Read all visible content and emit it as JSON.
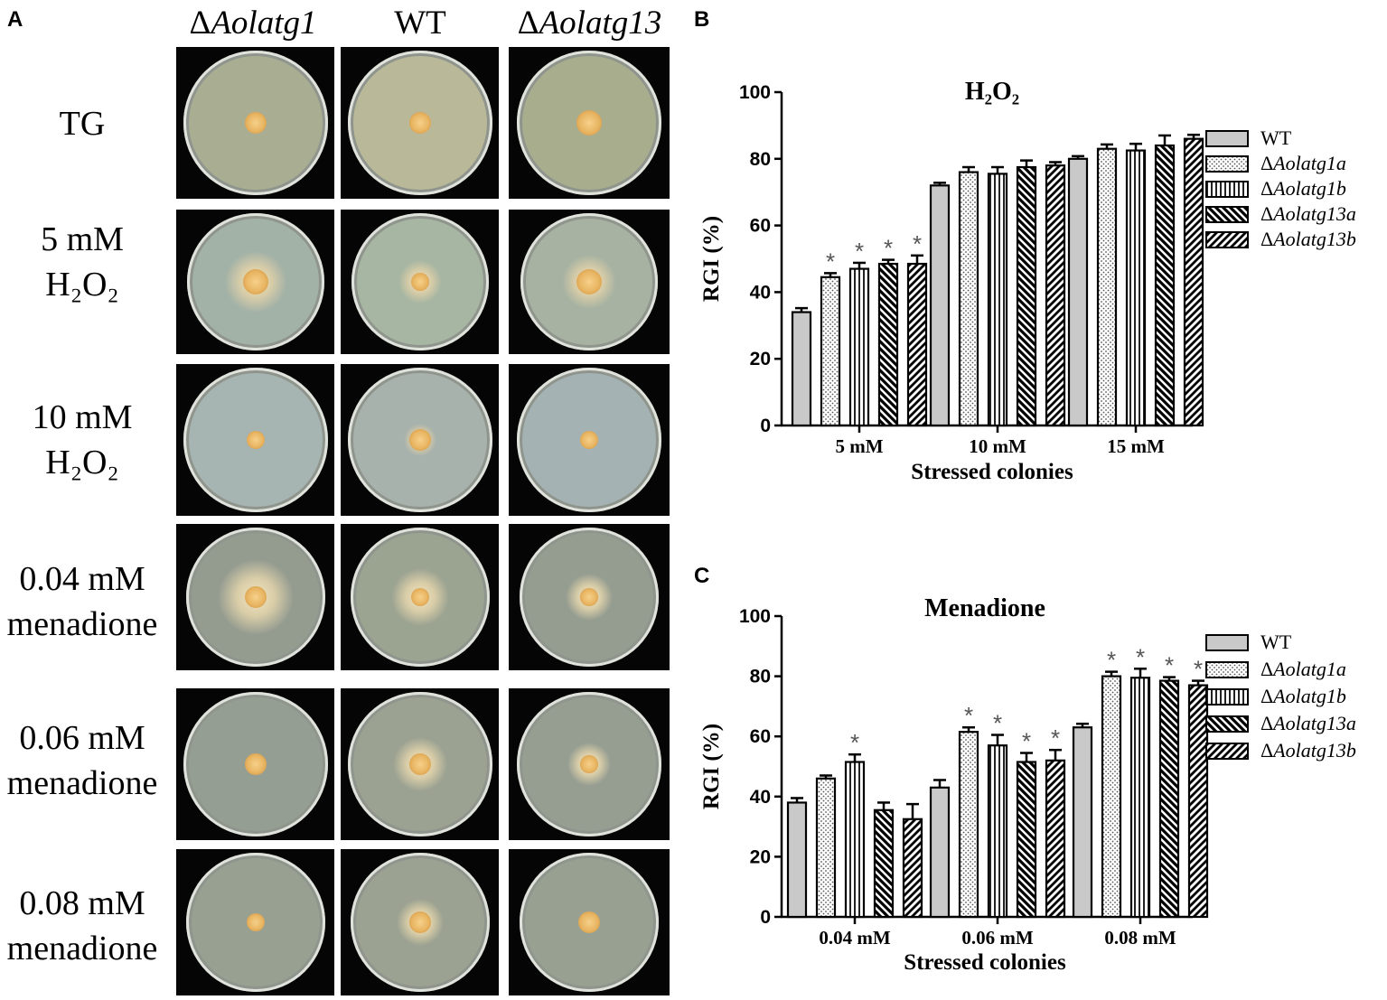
{
  "panels": {
    "a": "A",
    "b": "B",
    "c": "C"
  },
  "plates": {
    "column_headers": [
      {
        "prefix": "Δ",
        "name": "Aolatg1"
      },
      {
        "prefix": "",
        "name": "WT"
      },
      {
        "prefix": "Δ",
        "name": "Aolatg13"
      }
    ],
    "rows": [
      {
        "line1": "TG",
        "line2": ""
      },
      {
        "line1": "5 mM",
        "line2": "H₂O₂"
      },
      {
        "line1": "10 mM",
        "line2": "H₂O₂"
      },
      {
        "line1": "0.04 mM",
        "line2": "menadione"
      },
      {
        "line1": "0.06 mM",
        "line2": "menadione"
      },
      {
        "line1": "0.08 mM",
        "line2": "menadione"
      }
    ]
  },
  "chart_data": [
    {
      "type": "bar",
      "title": "H₂O₂",
      "xlabel": "Stressed colonies",
      "ylabel": "RGI (%)",
      "ylim": [
        0,
        100
      ],
      "yticks": [
        "0",
        "20",
        "40",
        "60",
        "80",
        "100"
      ],
      "categories": [
        "5 mM",
        "10 mM",
        "15 mM"
      ],
      "legend": "right",
      "series": [
        {
          "name": "WT",
          "values": [
            34,
            72,
            80
          ],
          "errors": [
            1.2,
            0.8,
            0.8
          ],
          "sig": [
            false,
            false,
            false
          ]
        },
        {
          "name": "ΔAolatg1a",
          "values": [
            44.5,
            76,
            83
          ],
          "errors": [
            1.2,
            1.5,
            1.3
          ],
          "sig": [
            true,
            false,
            false
          ]
        },
        {
          "name": "ΔAolatg1b",
          "values": [
            47,
            75.5,
            82.5
          ],
          "errors": [
            1.8,
            2,
            2
          ],
          "sig": [
            true,
            false,
            false
          ]
        },
        {
          "name": "ΔAolatg13a",
          "values": [
            48.5,
            77.5,
            84
          ],
          "errors": [
            1.2,
            2,
            3
          ],
          "sig": [
            true,
            false,
            false
          ]
        },
        {
          "name": "ΔAolatg13b",
          "values": [
            48.5,
            78,
            86
          ],
          "errors": [
            2.5,
            1,
            1.2
          ],
          "sig": [
            true,
            false,
            false
          ]
        }
      ]
    },
    {
      "type": "bar",
      "title": "Menadione",
      "xlabel": "Stressed colonies",
      "ylabel": "RGI (%)",
      "ylim": [
        0,
        100
      ],
      "yticks": [
        "0",
        "20",
        "40",
        "60",
        "80",
        "100"
      ],
      "categories": [
        "0.04 mM",
        "0.06 mM",
        "0.08 mM"
      ],
      "legend": "right",
      "series": [
        {
          "name": "WT",
          "values": [
            38,
            43,
            63
          ],
          "errors": [
            1.5,
            2.5,
            1.2
          ],
          "sig": [
            false,
            false,
            false
          ]
        },
        {
          "name": "ΔAolatg1a",
          "values": [
            46,
            61.5,
            80
          ],
          "errors": [
            1,
            1.5,
            1.5
          ],
          "sig": [
            false,
            true,
            true
          ]
        },
        {
          "name": "ΔAolatg1b",
          "values": [
            51.5,
            57,
            79.5
          ],
          "errors": [
            2.5,
            3.5,
            3
          ],
          "sig": [
            true,
            true,
            true
          ]
        },
        {
          "name": "ΔAolatg13a",
          "values": [
            35.5,
            51.5,
            78.5
          ],
          "errors": [
            2.5,
            3,
            1.2
          ],
          "sig": [
            false,
            true,
            true
          ]
        },
        {
          "name": "ΔAolatg13b",
          "values": [
            32.5,
            52,
            77
          ],
          "errors": [
            5,
            3.5,
            1.5
          ],
          "sig": [
            false,
            true,
            true
          ]
        }
      ]
    }
  ]
}
